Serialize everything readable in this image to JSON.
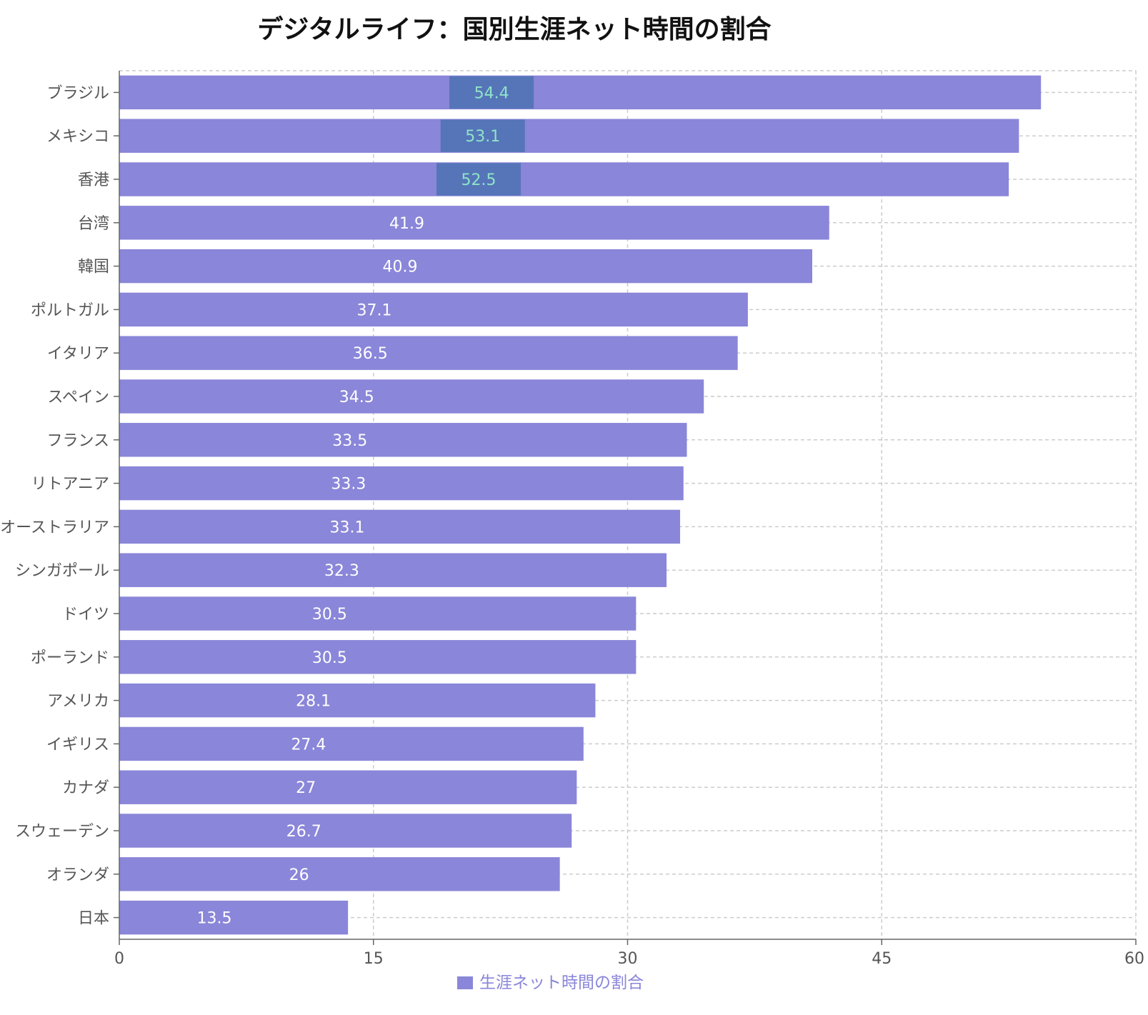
{
  "chart_data": {
    "type": "bar",
    "orientation": "horizontal",
    "title": "デジタルライフ：国別生涯ネット時間の割合",
    "categories": [
      "ブラジル",
      "メキシコ",
      "香港",
      "台湾",
      "韓国",
      "ポルトガル",
      "イタリア",
      "スペイン",
      "フランス",
      "リトアニア",
      "オーストラリア",
      "シンガポール",
      "ドイツ",
      "ポーランド",
      "アメリカ",
      "イギリス",
      "カナダ",
      "スウェーデン",
      "オランダ",
      "日本"
    ],
    "series": [
      {
        "name": "生涯ネット時間の割合",
        "values": [
          54.4,
          53.1,
          52.5,
          41.9,
          40.9,
          37.1,
          36.5,
          34.5,
          33.5,
          33.3,
          33.1,
          32.3,
          30.5,
          30.5,
          28.1,
          27.4,
          27,
          26.7,
          26,
          13.5
        ],
        "color": "#8a86d9"
      }
    ],
    "highlighted_categories": [
      "ブラジル",
      "メキシコ",
      "香港"
    ],
    "highlight_box_color": "#5575b8",
    "highlight_text_color": "#8fe3c8",
    "label_text_color": "#ffffff",
    "xlim": [
      0,
      60
    ],
    "xticks": [
      0,
      15,
      30,
      45,
      60
    ],
    "grid": true,
    "legend_position": "bottom"
  }
}
